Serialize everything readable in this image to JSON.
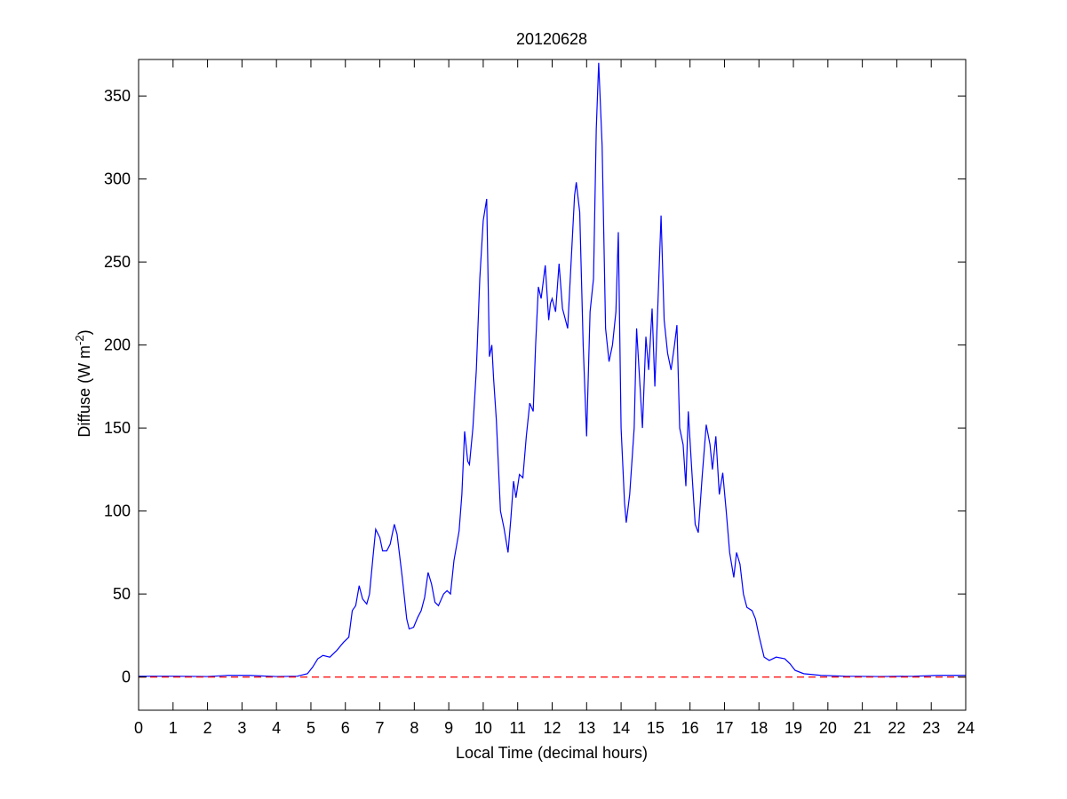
{
  "chart_data": {
    "type": "line",
    "title": "20120628",
    "xlabel": "Local Time (decimal hours)",
    "ylabel": {
      "text": "Diffuse (W m",
      "superscript": "-2",
      "suffix": ")"
    },
    "xlim": [
      0,
      24
    ],
    "ylim": [
      -20,
      372
    ],
    "xticks": [
      0,
      1,
      2,
      3,
      4,
      5,
      6,
      7,
      8,
      9,
      10,
      11,
      12,
      13,
      14,
      15,
      16,
      17,
      18,
      19,
      20,
      21,
      22,
      23,
      24
    ],
    "yticks": [
      0,
      50,
      100,
      150,
      200,
      250,
      300,
      350
    ],
    "series": [
      {
        "color": "#0000ff",
        "style": "solid",
        "x": [
          0,
          1,
          2,
          2.6,
          3.2,
          4,
          4.6,
          4.9,
          5.05,
          5.2,
          5.35,
          5.55,
          5.75,
          5.95,
          6.1,
          6.2,
          6.3,
          6.4,
          6.5,
          6.62,
          6.7,
          6.8,
          6.88,
          7.0,
          7.08,
          7.2,
          7.3,
          7.42,
          7.5,
          7.65,
          7.78,
          7.85,
          7.98,
          8.1,
          8.2,
          8.3,
          8.4,
          8.5,
          8.6,
          8.7,
          8.85,
          8.95,
          9.05,
          9.15,
          9.3,
          9.38,
          9.46,
          9.55,
          9.6,
          9.7,
          9.8,
          9.9,
          10.0,
          10.1,
          10.18,
          10.25,
          10.3,
          10.38,
          10.5,
          10.6,
          10.72,
          10.8,
          10.88,
          10.95,
          11.05,
          11.15,
          11.25,
          11.35,
          11.45,
          11.52,
          11.6,
          11.68,
          11.8,
          11.9,
          11.95,
          12.0,
          12.1,
          12.2,
          12.3,
          12.45,
          12.55,
          12.65,
          12.7,
          12.8,
          12.9,
          13.0,
          13.1,
          13.2,
          13.28,
          13.35,
          13.45,
          13.55,
          13.65,
          13.75,
          13.85,
          13.92,
          14.0,
          14.1,
          14.15,
          14.25,
          14.38,
          14.45,
          14.55,
          14.62,
          14.72,
          14.8,
          14.9,
          14.98,
          15.06,
          15.16,
          15.25,
          15.35,
          15.45,
          15.55,
          15.62,
          15.7,
          15.8,
          15.88,
          15.95,
          16.05,
          16.15,
          16.24,
          16.35,
          16.47,
          16.58,
          16.65,
          16.75,
          16.85,
          16.95,
          17.05,
          17.15,
          17.27,
          17.35,
          17.45,
          17.55,
          17.65,
          17.8,
          17.9,
          18.0,
          18.15,
          18.3,
          18.5,
          18.75,
          18.9,
          19.05,
          19.3,
          19.8,
          20.5,
          21.5,
          22.5,
          23.2,
          24
        ],
        "values": [
          0.5,
          0.5,
          0.3,
          1,
          1,
          0.3,
          0.5,
          2,
          6,
          11,
          13,
          12,
          16,
          21,
          24,
          40,
          43,
          55,
          47,
          44,
          50,
          72,
          89,
          84,
          76,
          76,
          80,
          92,
          86,
          60,
          35,
          29,
          30,
          36,
          40,
          48,
          63,
          56,
          45,
          43,
          50,
          52,
          50,
          70,
          88,
          110,
          148,
          130,
          128,
          150,
          185,
          240,
          275,
          288,
          193,
          200,
          180,
          155,
          100,
          90,
          75,
          95,
          118,
          108,
          122,
          120,
          145,
          165,
          160,
          200,
          235,
          228,
          248,
          215,
          225,
          228,
          220,
          249,
          222,
          210,
          250,
          290,
          298,
          280,
          200,
          145,
          220,
          240,
          330,
          370,
          320,
          210,
          190,
          200,
          220,
          268,
          150,
          105,
          93,
          110,
          150,
          210,
          175,
          150,
          205,
          185,
          222,
          175,
          220,
          278,
          215,
          195,
          185,
          200,
          212,
          150,
          140,
          115,
          160,
          125,
          92,
          87,
          120,
          152,
          140,
          125,
          145,
          110,
          123,
          100,
          75,
          60,
          75,
          68,
          50,
          42,
          40,
          35,
          25,
          12,
          10,
          12,
          11,
          8,
          4,
          2,
          1,
          0.5,
          0.3,
          0.5,
          1,
          1
        ]
      },
      {
        "color": "#ff0000",
        "style": "dashed",
        "x": [
          0,
          24
        ],
        "values": [
          0,
          0
        ]
      }
    ]
  }
}
